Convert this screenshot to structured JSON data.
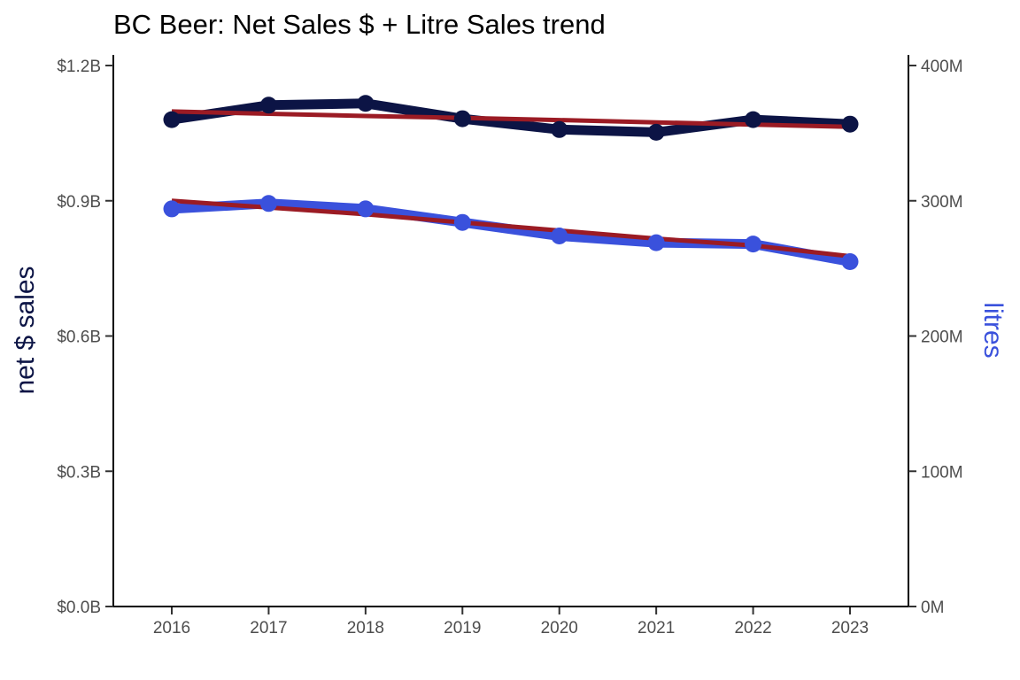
{
  "chart_data": {
    "type": "line",
    "title": "BC Beer: Net Sales $ + Litre Sales trend",
    "xlabel": "",
    "ylabel_left": "net $ sales",
    "ylabel_right": "litres",
    "x": [
      2016,
      2017,
      2018,
      2019,
      2020,
      2021,
      2022,
      2023
    ],
    "x_tick_labels": [
      "2016",
      "2017",
      "2018",
      "2019",
      "2020",
      "2021",
      "2022",
      "2023"
    ],
    "y_left": {
      "range": [
        0,
        1.2
      ],
      "ticks": [
        0,
        0.3,
        0.6,
        0.9,
        1.2
      ],
      "tick_labels": [
        "$0.0B",
        "$0.3B",
        "$0.6B",
        "$0.9B",
        "$1.2B"
      ]
    },
    "y_right": {
      "range": [
        0,
        400
      ],
      "ticks": [
        0,
        100,
        200,
        300,
        400
      ],
      "tick_labels": [
        "0M",
        "100M",
        "200M",
        "300M",
        "400M"
      ]
    },
    "series": [
      {
        "axis": "left",
        "unit": "billions of dollars",
        "color": "#0c1445",
        "values": [
          1.08,
          1.112,
          1.116,
          1.082,
          1.058,
          1.052,
          1.08,
          1.07
        ],
        "trend": [
          1.098,
          1.093,
          1.088,
          1.084,
          1.079,
          1.074,
          1.069,
          1.064
        ],
        "trend_color": "#9b1b24"
      },
      {
        "axis": "right",
        "unit": "millions of litres",
        "color": "#3a51dc",
        "values": [
          294,
          298,
          294,
          284,
          274,
          269,
          268,
          255
        ],
        "trend": [
          300,
          295,
          290,
          284,
          278,
          272,
          267,
          259
        ],
        "trend_color": "#9b1b24"
      }
    ],
    "grid": false,
    "legend": "none",
    "colors": {
      "ylabel_left": "#0c1445",
      "ylabel_right": "#3a51dc"
    }
  }
}
